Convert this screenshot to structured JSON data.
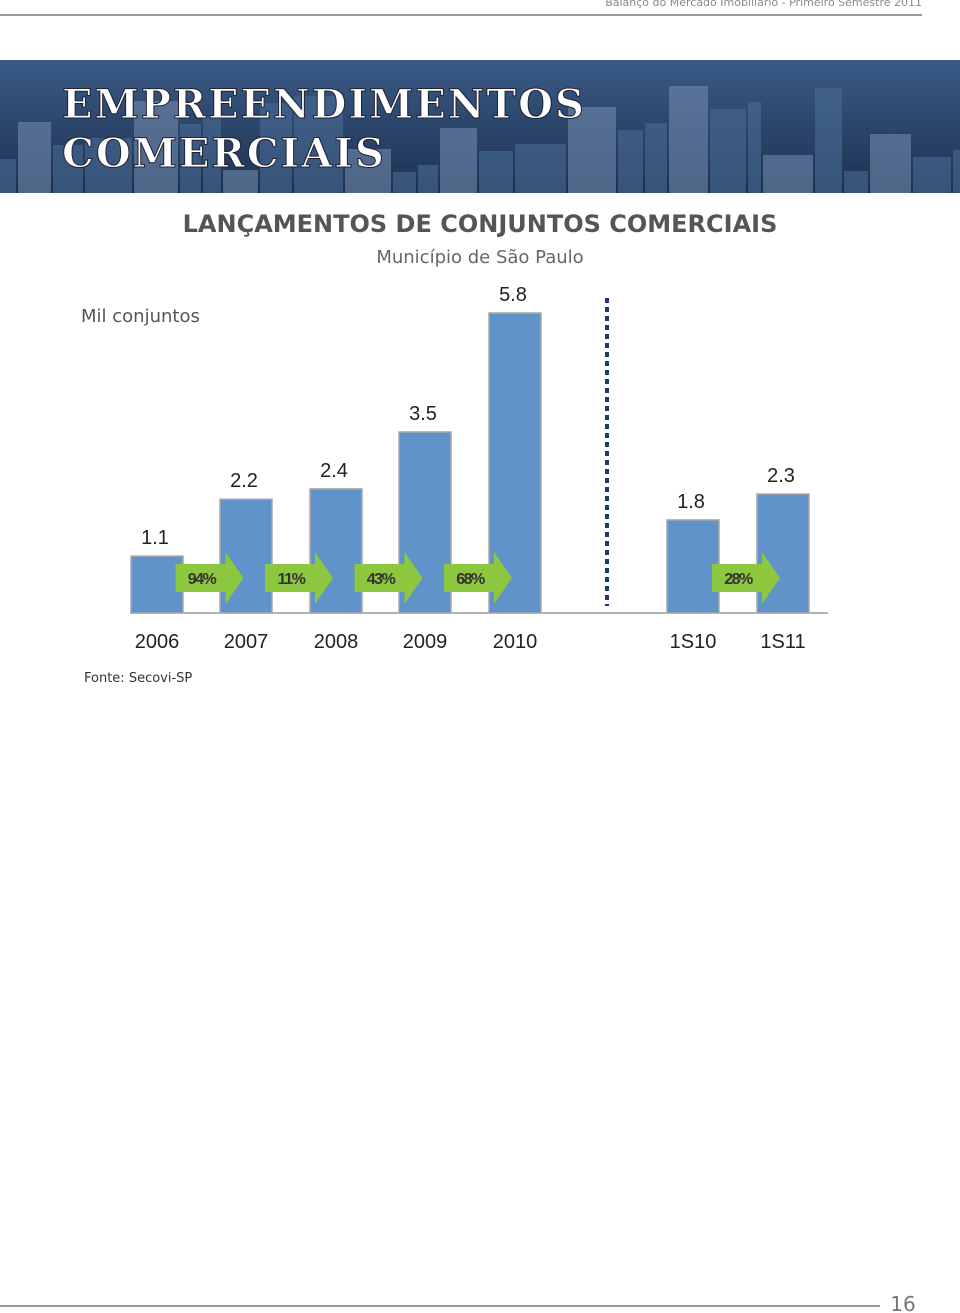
{
  "header": {
    "running_title": "Balanço do Mercado Imobiliário - Primeiro Semestre 2011"
  },
  "banner": {
    "title_lines": [
      "EMPREENDIMENTOS",
      "COMERCIAIS"
    ]
  },
  "chart_data": {
    "type": "bar",
    "title": "LANÇAMENTOS DE CONJUNTOS COMERCIAIS",
    "subtitle": "Município de São Paulo",
    "unit_label": "Mil conjuntos",
    "categories": [
      "2006",
      "2007",
      "2008",
      "2009",
      "2010",
      "1S10",
      "1S11"
    ],
    "values": [
      1.1,
      2.2,
      2.4,
      3.5,
      5.8,
      1.8,
      2.3
    ],
    "color": "#5f93c9",
    "annotations": [
      "94%",
      "11%",
      "43%",
      "68%",
      "28%"
    ],
    "annotation_color": "#8dc63f",
    "source": "Fonte: Secovi-SP"
  },
  "footer": {
    "page_number": "16"
  }
}
